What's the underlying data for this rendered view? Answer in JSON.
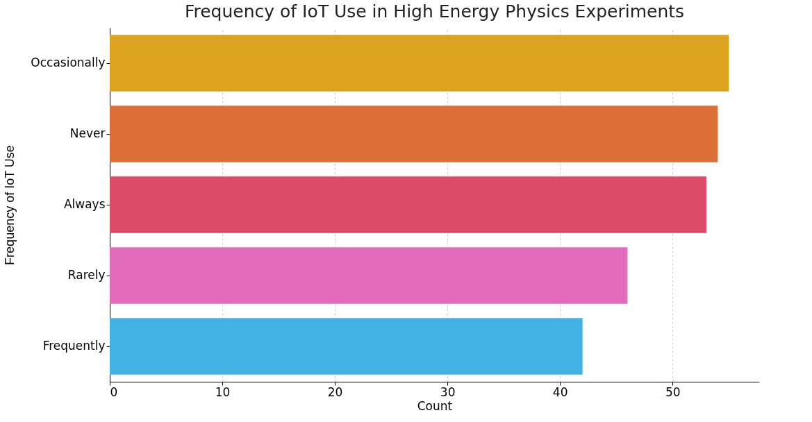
{
  "chart_data": {
    "type": "bar",
    "orientation": "horizontal",
    "title": "Frequency of IoT Use in High Energy Physics Experiments",
    "xlabel": "Count",
    "ylabel": "Frequency of IoT Use",
    "categories": [
      "Occasionally",
      "Never",
      "Always",
      "Rarely",
      "Frequently"
    ],
    "values": [
      55,
      54,
      53,
      46,
      42
    ],
    "colors": [
      "#dca321",
      "#dc6f3a",
      "#dc4b68",
      "#e26bbb",
      "#44b1e3"
    ],
    "xlim": [
      0,
      57.7
    ],
    "xticks": [
      0,
      10,
      20,
      30,
      40,
      50
    ],
    "grid": "x",
    "legend": false
  }
}
